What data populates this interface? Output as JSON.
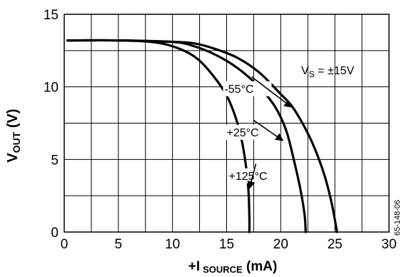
{
  "chart_data": {
    "type": "line",
    "xlim": [
      0,
      30
    ],
    "ylim": [
      0,
      15
    ],
    "x_ticks": [
      0,
      5,
      10,
      15,
      20,
      25,
      30
    ],
    "y_ticks": [
      0,
      5,
      10,
      15
    ],
    "x_tick_labels": [
      "0",
      "5",
      "10",
      "15",
      "20",
      "25",
      "30"
    ],
    "y_tick_labels": [
      "0",
      "5",
      "10",
      "15"
    ],
    "x_grid_step": 2.5,
    "y_grid_step": 2.5,
    "grid": true,
    "xlabel": {
      "main": "+I",
      "sub": "SOURCE",
      "unit": " (mA)"
    },
    "ylabel": {
      "main": "V",
      "sub": "OUT",
      "unit": " (V)"
    },
    "supply_label": {
      "main": "V",
      "sub": "S",
      "value": " = ±15V"
    },
    "figure_code": "65-148-06",
    "series": [
      {
        "name": "-55°C",
        "points": [
          [
            0.3,
            13.2
          ],
          [
            5,
            13.2
          ],
          [
            10,
            13.1
          ],
          [
            12,
            13.0
          ],
          [
            14,
            12.6
          ],
          [
            16,
            12.0
          ],
          [
            18,
            11.0
          ],
          [
            20,
            9.5
          ],
          [
            21,
            8.7
          ],
          [
            22,
            7.5
          ],
          [
            23,
            6.0
          ],
          [
            24,
            4.0
          ],
          [
            24.7,
            2.0
          ],
          [
            25.2,
            0
          ]
        ]
      },
      {
        "name": "+25°C",
        "points": [
          [
            0.3,
            13.2
          ],
          [
            5,
            13.2
          ],
          [
            10,
            13.1
          ],
          [
            12,
            12.8
          ],
          [
            14,
            12.2
          ],
          [
            16,
            11.3
          ],
          [
            18,
            10.0
          ],
          [
            19.5,
            8.6
          ],
          [
            20.5,
            7.0
          ],
          [
            21.2,
            5.0
          ],
          [
            21.8,
            3.0
          ],
          [
            22.2,
            1.2
          ],
          [
            22.3,
            0
          ]
        ]
      },
      {
        "name": "+125°C",
        "points": [
          [
            0.3,
            13.2
          ],
          [
            5,
            13.2
          ],
          [
            8,
            13.1
          ],
          [
            10,
            12.8
          ],
          [
            12,
            12.1
          ],
          [
            13.5,
            11.0
          ],
          [
            15,
            9.4
          ],
          [
            16,
            7.5
          ],
          [
            16.6,
            5.5
          ],
          [
            17,
            3.0
          ],
          [
            17.1,
            1.0
          ],
          [
            17.1,
            0
          ]
        ]
      }
    ],
    "annotations": [
      {
        "series": "-55°C",
        "label": "-55°C",
        "label_at": [
          14.8,
          9.6
        ],
        "arrow_from": [
          14.8,
          10.4
        ],
        "arrow_to": [
          21.0,
          8.6
        ]
      },
      {
        "series": "+25°C",
        "label": "+25°C",
        "label_at": [
          15.0,
          6.6
        ],
        "arrow_from": [
          15.0,
          7.4
        ],
        "arrow_to": [
          20.2,
          6.3
        ]
      },
      {
        "series": "+125°C",
        "label": "+125°C",
        "label_at": [
          15.2,
          3.6
        ],
        "arrow_from": [
          15.2,
          4.4
        ],
        "arrow_to": [
          17.1,
          3.0
        ]
      }
    ],
    "colors": {
      "line": "#000000",
      "grid": "#000000",
      "background": "#ffffff"
    }
  }
}
